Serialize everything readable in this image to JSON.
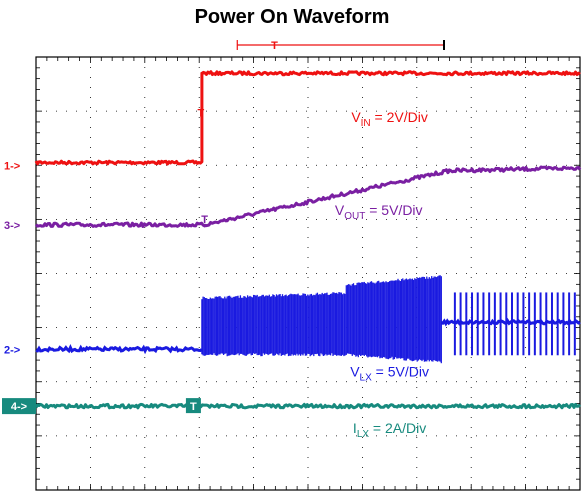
{
  "chart_data": {
    "type": "line",
    "title": "Power On Waveform",
    "xlabel": "",
    "ylabel": "",
    "grid": true,
    "time_divisions": 10,
    "vertical_divisions": 8,
    "trigger_marker": "T",
    "series": [
      {
        "name": "VIN",
        "channel_marker": "1->",
        "label_main": "V",
        "label_sub": "IN",
        "label_scale": " = 2V/Div",
        "color": "#ee1111",
        "ground_div": 6.0,
        "points_div": [
          [
            0,
            0.05
          ],
          [
            3.05,
            0.05
          ],
          [
            3.05,
            1.7
          ],
          [
            10,
            1.7
          ]
        ]
      },
      {
        "name": "VOUT",
        "channel_marker": "3->",
        "label_main": "V",
        "label_sub": "OUT",
        "label_scale": " = 5V/Div",
        "color": "#7a1fa2",
        "ground_div": 4.9,
        "points_div": [
          [
            0,
            0.0
          ],
          [
            3.1,
            0.0
          ],
          [
            7.6,
            1.0
          ],
          [
            10,
            1.05
          ]
        ]
      },
      {
        "name": "VLX",
        "channel_marker": "2->",
        "label_main": "V",
        "label_sub": "LX",
        "label_scale": " = 5V/Div",
        "color": "#1a1ae0",
        "ground_div": 2.6,
        "switching_start_div": 3.05,
        "switching_end_div": 7.45,
        "burst_end_div": 10,
        "switching_high_div": 1.0
      },
      {
        "name": "ILX",
        "channel_marker": "4->",
        "label_main": "I",
        "label_sub": "LX",
        "label_scale": " = 2A/Div",
        "color": "#178a7e",
        "ground_div": 1.55,
        "points_div": [
          [
            0,
            0.0
          ],
          [
            10,
            0.0
          ]
        ]
      }
    ]
  },
  "colors": {
    "grid": "#000000",
    "trigger": "#ee1111",
    "channel4_badge": "#178a7e"
  }
}
